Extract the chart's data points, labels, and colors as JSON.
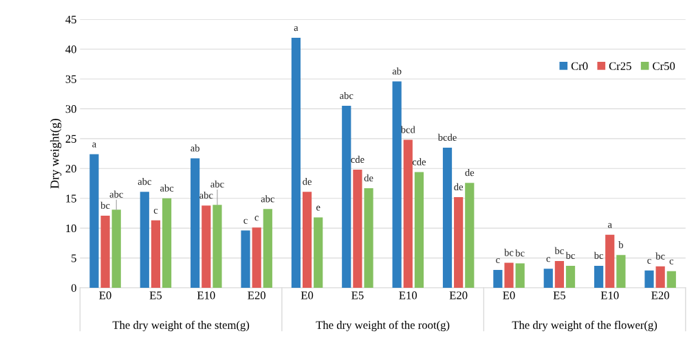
{
  "chart_data": {
    "type": "bar",
    "ylabel": "Dry weight(g)",
    "categories": [
      "E0",
      "E5",
      "E10",
      "E20",
      "E0",
      "E5",
      "E10",
      "E20",
      "E0",
      "E5",
      "E10",
      "E20"
    ],
    "series": [
      {
        "name": "Cr0",
        "color": "#2e7fc0",
        "values": [
          22.4,
          16.1,
          21.7,
          9.6,
          41.9,
          30.5,
          34.6,
          23.5,
          3.0,
          3.2,
          3.7,
          2.9
        ],
        "value_labels": [
          "a",
          "abc",
          "ab",
          "c",
          "a",
          "abc",
          "ab",
          "bcde",
          "c",
          "c",
          "bc",
          "c"
        ]
      },
      {
        "name": "Cr25",
        "color": "#e05a55",
        "values": [
          12.1,
          11.3,
          13.8,
          10.1,
          16.1,
          19.8,
          24.8,
          15.2,
          4.2,
          4.5,
          8.9,
          3.6
        ],
        "value_labels": [
          "bc",
          "c",
          "abc",
          "c",
          "de",
          "cde",
          "bcd",
          "de",
          "bc",
          "bc",
          "a",
          "bc"
        ]
      },
      {
        "name": "Cr50",
        "color": "#84c060",
        "values": [
          13.1,
          15.0,
          13.9,
          13.2,
          11.8,
          16.7,
          19.4,
          17.6,
          4.1,
          3.7,
          5.5,
          2.8
        ],
        "value_labels": [
          "abc",
          "abc",
          "abc",
          "abc",
          "e",
          "de",
          "cde",
          "de",
          "bc",
          "bc",
          "b",
          "c"
        ]
      }
    ],
    "annotations": [
      "The dry weight of the stem(g)",
      "The dry weight of the root(g)",
      "The dry weight of the flower(g)"
    ],
    "ylim": [
      0,
      45
    ],
    "yticks": [
      0,
      5,
      10,
      15,
      20,
      25,
      30,
      35,
      40,
      45
    ],
    "grid": "y",
    "legend": "top right"
  }
}
